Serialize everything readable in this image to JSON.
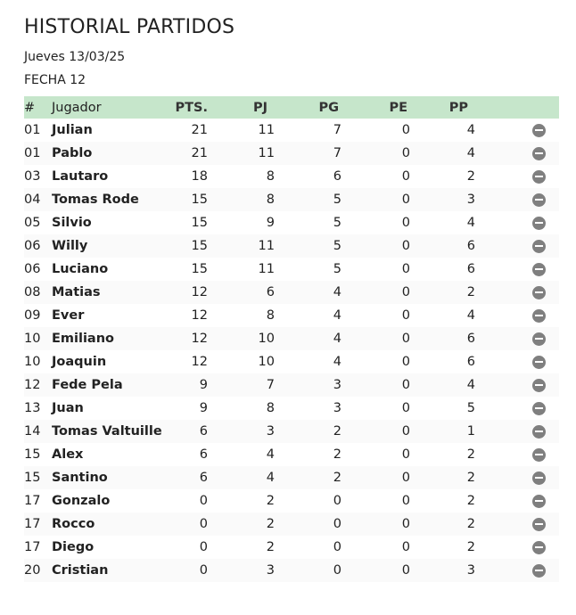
{
  "page": {
    "title": "HISTORIAL PARTIDOS",
    "date_line": "Jueves 13/03/25",
    "fecha_line": "FECHA 12"
  },
  "table": {
    "headers": {
      "pos": "#",
      "name": "Jugador",
      "pts": "PTS.",
      "pj": "PJ",
      "pg": "PG",
      "pe": "PE",
      "pp": "PP"
    },
    "rows": [
      {
        "pos": "01",
        "name": "Julian",
        "pts": "21",
        "pj": "11",
        "pg": "7",
        "pe": "0",
        "pp": "4"
      },
      {
        "pos": "01",
        "name": "Pablo",
        "pts": "21",
        "pj": "11",
        "pg": "7",
        "pe": "0",
        "pp": "4"
      },
      {
        "pos": "03",
        "name": "Lautaro",
        "pts": "18",
        "pj": "8",
        "pg": "6",
        "pe": "0",
        "pp": "2"
      },
      {
        "pos": "04",
        "name": "Tomas Rode",
        "pts": "15",
        "pj": "8",
        "pg": "5",
        "pe": "0",
        "pp": "3"
      },
      {
        "pos": "05",
        "name": "Silvio",
        "pts": "15",
        "pj": "9",
        "pg": "5",
        "pe": "0",
        "pp": "4"
      },
      {
        "pos": "06",
        "name": "Willy",
        "pts": "15",
        "pj": "11",
        "pg": "5",
        "pe": "0",
        "pp": "6"
      },
      {
        "pos": "06",
        "name": "Luciano",
        "pts": "15",
        "pj": "11",
        "pg": "5",
        "pe": "0",
        "pp": "6"
      },
      {
        "pos": "08",
        "name": "Matias",
        "pts": "12",
        "pj": "6",
        "pg": "4",
        "pe": "0",
        "pp": "2"
      },
      {
        "pos": "09",
        "name": "Ever",
        "pts": "12",
        "pj": "8",
        "pg": "4",
        "pe": "0",
        "pp": "4"
      },
      {
        "pos": "10",
        "name": "Emiliano",
        "pts": "12",
        "pj": "10",
        "pg": "4",
        "pe": "0",
        "pp": "6"
      },
      {
        "pos": "10",
        "name": "Joaquin",
        "pts": "12",
        "pj": "10",
        "pg": "4",
        "pe": "0",
        "pp": "6"
      },
      {
        "pos": "12",
        "name": "Fede Pela",
        "pts": "9",
        "pj": "7",
        "pg": "3",
        "pe": "0",
        "pp": "4"
      },
      {
        "pos": "13",
        "name": "Juan",
        "pts": "9",
        "pj": "8",
        "pg": "3",
        "pe": "0",
        "pp": "5"
      },
      {
        "pos": "14",
        "name": "Tomas Valtuille",
        "pts": "6",
        "pj": "3",
        "pg": "2",
        "pe": "0",
        "pp": "1"
      },
      {
        "pos": "15",
        "name": "Alex",
        "pts": "6",
        "pj": "4",
        "pg": "2",
        "pe": "0",
        "pp": "2"
      },
      {
        "pos": "15",
        "name": "Santino",
        "pts": "6",
        "pj": "4",
        "pg": "2",
        "pe": "0",
        "pp": "2"
      },
      {
        "pos": "17",
        "name": "Gonzalo",
        "pts": "0",
        "pj": "2",
        "pg": "0",
        "pe": "0",
        "pp": "2"
      },
      {
        "pos": "17",
        "name": "Rocco",
        "pts": "0",
        "pj": "2",
        "pg": "0",
        "pe": "0",
        "pp": "2"
      },
      {
        "pos": "17",
        "name": "Diego",
        "pts": "0",
        "pj": "2",
        "pg": "0",
        "pe": "0",
        "pp": "2"
      },
      {
        "pos": "20",
        "name": "Cristian",
        "pts": "0",
        "pj": "3",
        "pg": "0",
        "pe": "0",
        "pp": "3"
      }
    ],
    "row_action_icon": "minus-circle-icon"
  },
  "colors": {
    "header_bg": "#c6e6cb",
    "icon": "#7f7f7f"
  }
}
